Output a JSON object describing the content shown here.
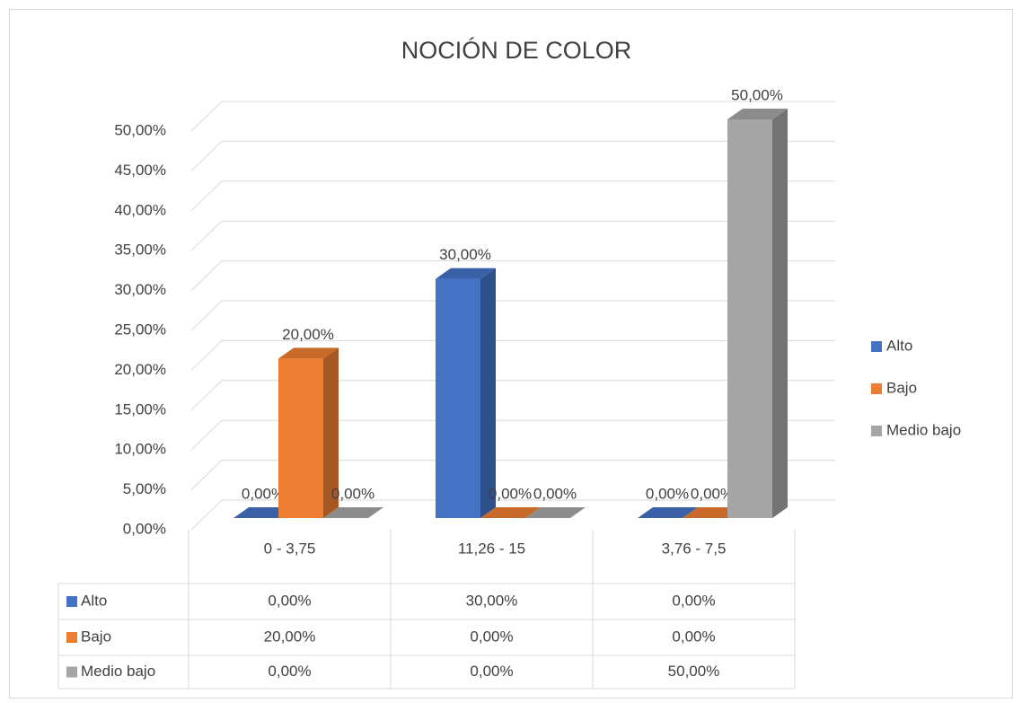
{
  "chart_data": {
    "type": "bar3d",
    "title": "NOCIÓN DE COLOR",
    "categories": [
      "0 - 3,75",
      "11,26 - 15",
      "3,76 - 7,5"
    ],
    "series": [
      {
        "name": "Alto",
        "color": "#4472c4",
        "values": [
          0,
          30,
          0
        ],
        "value_labels": [
          "0,00%",
          "30,00%",
          "0,00%"
        ]
      },
      {
        "name": "Bajo",
        "color": "#ed7d31",
        "values": [
          20,
          0,
          0
        ],
        "value_labels": [
          "20,00%",
          "0,00%",
          "0,00%"
        ]
      },
      {
        "name": "Medio bajo",
        "color": "#a5a5a5",
        "values": [
          0,
          0,
          50
        ],
        "value_labels": [
          "0,00%",
          "0,00%",
          "50,00%"
        ]
      }
    ],
    "ylim": [
      0,
      50
    ],
    "yticks": [
      {
        "value": 0,
        "label": "0,00%"
      },
      {
        "value": 5,
        "label": "5,00%"
      },
      {
        "value": 10,
        "label": "10,00%"
      },
      {
        "value": 15,
        "label": "15,00%"
      },
      {
        "value": 20,
        "label": "20,00%"
      },
      {
        "value": 25,
        "label": "25,00%"
      },
      {
        "value": 30,
        "label": "30,00%"
      },
      {
        "value": 35,
        "label": "35,00%"
      },
      {
        "value": 40,
        "label": "40,00%"
      },
      {
        "value": 45,
        "label": "45,00%"
      },
      {
        "value": 50,
        "label": "50,00%"
      }
    ],
    "grid": true,
    "legend": "right",
    "data_table": true
  }
}
